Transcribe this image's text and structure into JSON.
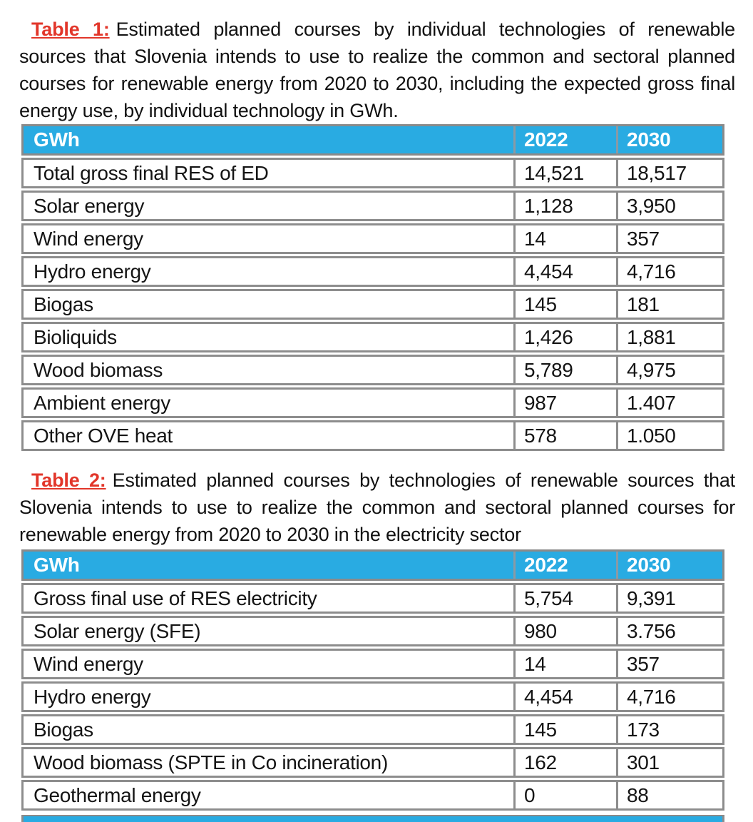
{
  "colors": {
    "page_background": "#ffffff",
    "table_header_bg": "#29abe2",
    "table_header_text": "#ffffff",
    "caption_label_red": "#e2362a",
    "table_border_gray": "#8d8d8d",
    "body_text": "#141414"
  },
  "sections": [
    {
      "caption_label": "Table 1:",
      "caption_text": "Estimated planned courses by individual technologies of renewable sources that Slovenia intends to use to realize the common and sectoral planned courses for renewable energy from 2020 to 2030, including the expected gross final energy use, by individual technology in GWh.",
      "table": {
        "headers": [
          "GWh",
          "2022",
          "2030"
        ],
        "rows": [
          [
            "Total gross final RES of ED",
            "14,521",
            "18,517"
          ],
          [
            "Solar energy",
            "1,128",
            "3,950"
          ],
          [
            "Wind energy",
            "14",
            "357"
          ],
          [
            "Hydro energy",
            "4,454",
            "4,716"
          ],
          [
            "Biogas",
            "145",
            "181"
          ],
          [
            "Bioliquids",
            "1,426",
            "1,881"
          ],
          [
            "Wood biomass",
            "5,789",
            "4,975"
          ],
          [
            "Ambient energy",
            "987",
            "1.407"
          ],
          [
            "Other OVE heat",
            "578",
            "1.050"
          ]
        ]
      }
    },
    {
      "caption_label": "Table 2:",
      "caption_text": "Estimated planned courses by technologies of renewable sources that Slovenia intends to use to realize the common and sectoral planned courses for renewable energy from 2020 to 2030 in the electricity sector",
      "table": {
        "headers": [
          "GWh",
          "2022",
          "2030"
        ],
        "rows": [
          [
            "Gross final use of RES electricity",
            "5,754",
            "9,391"
          ],
          [
            "Solar energy (SFE)",
            "980",
            "3.756"
          ],
          [
            "Wind energy",
            "14",
            "357"
          ],
          [
            "Hydro energy",
            "4,454",
            "4,716"
          ],
          [
            "Biogas",
            "145",
            "173"
          ],
          [
            "Wood biomass (SPTE in Co incineration)",
            "162",
            "301"
          ],
          [
            "Geothermal energy",
            "0",
            "88"
          ]
        ]
      }
    }
  ],
  "partial_next_table_header_visible": true
}
